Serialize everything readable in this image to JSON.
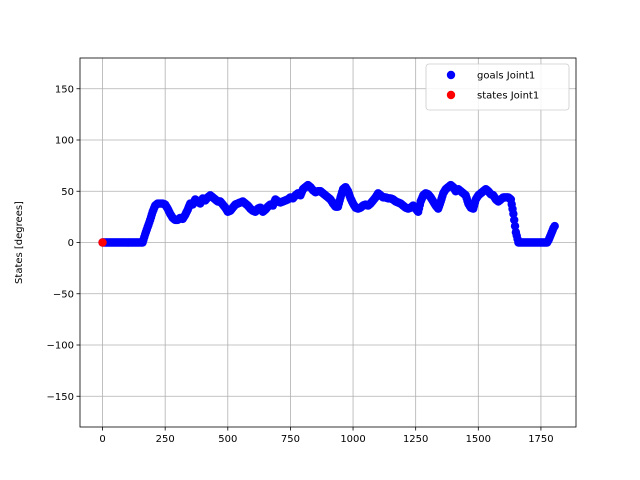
{
  "chart_data": {
    "type": "scatter",
    "title": "",
    "xlabel": "",
    "ylabel": "States [degrees]",
    "xlim": [
      -90,
      1890
    ],
    "ylim": [
      -180,
      180
    ],
    "xticks": [
      0,
      250,
      500,
      750,
      1000,
      1250,
      1500,
      1750
    ],
    "yticks": [
      -150,
      -100,
      -50,
      0,
      50,
      100,
      150
    ],
    "grid": true,
    "legend_position": "top-right",
    "series": [
      {
        "name": "goals Joint1",
        "color": "#0000ff",
        "points": [
          [
            0,
            0
          ],
          [
            20,
            0
          ],
          [
            50,
            0
          ],
          [
            80,
            0
          ],
          [
            110,
            0
          ],
          [
            140,
            0
          ],
          [
            160,
            0
          ],
          [
            170,
            8
          ],
          [
            180,
            15
          ],
          [
            190,
            22
          ],
          [
            200,
            30
          ],
          [
            210,
            36
          ],
          [
            220,
            38
          ],
          [
            240,
            38
          ],
          [
            250,
            37
          ],
          [
            260,
            33
          ],
          [
            270,
            28
          ],
          [
            280,
            24
          ],
          [
            290,
            22
          ],
          [
            300,
            22
          ],
          [
            310,
            24
          ],
          [
            320,
            23
          ],
          [
            330,
            27
          ],
          [
            340,
            32
          ],
          [
            350,
            38
          ],
          [
            360,
            37
          ],
          [
            370,
            42
          ],
          [
            380,
            40
          ],
          [
            390,
            38
          ],
          [
            400,
            43
          ],
          [
            410,
            41
          ],
          [
            420,
            44
          ],
          [
            430,
            46
          ],
          [
            440,
            44
          ],
          [
            450,
            42
          ],
          [
            460,
            40
          ],
          [
            470,
            40
          ],
          [
            480,
            37
          ],
          [
            490,
            34
          ],
          [
            500,
            30
          ],
          [
            510,
            31
          ],
          [
            520,
            34
          ],
          [
            530,
            37
          ],
          [
            540,
            38
          ],
          [
            550,
            39
          ],
          [
            560,
            40
          ],
          [
            570,
            38
          ],
          [
            580,
            36
          ],
          [
            590,
            33
          ],
          [
            600,
            31
          ],
          [
            610,
            30
          ],
          [
            620,
            33
          ],
          [
            630,
            34
          ],
          [
            640,
            30
          ],
          [
            650,
            32
          ],
          [
            660,
            35
          ],
          [
            670,
            37
          ],
          [
            680,
            36
          ],
          [
            690,
            42
          ],
          [
            700,
            40
          ],
          [
            710,
            39
          ],
          [
            720,
            40
          ],
          [
            730,
            41
          ],
          [
            740,
            42
          ],
          [
            750,
            44
          ],
          [
            760,
            43
          ],
          [
            770,
            46
          ],
          [
            780,
            48
          ],
          [
            790,
            46
          ],
          [
            800,
            52
          ],
          [
            810,
            54
          ],
          [
            820,
            56
          ],
          [
            830,
            54
          ],
          [
            840,
            51
          ],
          [
            850,
            49
          ],
          [
            860,
            50
          ],
          [
            870,
            50
          ],
          [
            880,
            48
          ],
          [
            890,
            46
          ],
          [
            900,
            44
          ],
          [
            910,
            42
          ],
          [
            920,
            38
          ],
          [
            930,
            35
          ],
          [
            940,
            35
          ],
          [
            950,
            44
          ],
          [
            960,
            52
          ],
          [
            970,
            54
          ],
          [
            980,
            50
          ],
          [
            990,
            43
          ],
          [
            1000,
            38
          ],
          [
            1010,
            34
          ],
          [
            1020,
            33
          ],
          [
            1030,
            34
          ],
          [
            1040,
            36
          ],
          [
            1050,
            37
          ],
          [
            1060,
            36
          ],
          [
            1070,
            38
          ],
          [
            1080,
            41
          ],
          [
            1090,
            44
          ],
          [
            1100,
            48
          ],
          [
            1110,
            46
          ],
          [
            1120,
            44
          ],
          [
            1130,
            44
          ],
          [
            1140,
            43
          ],
          [
            1150,
            43
          ],
          [
            1160,
            42
          ],
          [
            1170,
            40
          ],
          [
            1180,
            39
          ],
          [
            1190,
            38
          ],
          [
            1200,
            36
          ],
          [
            1210,
            34
          ],
          [
            1220,
            33
          ],
          [
            1230,
            34
          ],
          [
            1240,
            36
          ],
          [
            1250,
            33
          ],
          [
            1260,
            30
          ],
          [
            1270,
            40
          ],
          [
            1280,
            46
          ],
          [
            1290,
            48
          ],
          [
            1300,
            47
          ],
          [
            1310,
            44
          ],
          [
            1320,
            40
          ],
          [
            1330,
            36
          ],
          [
            1340,
            33
          ],
          [
            1350,
            40
          ],
          [
            1360,
            48
          ],
          [
            1370,
            52
          ],
          [
            1380,
            54
          ],
          [
            1390,
            56
          ],
          [
            1400,
            54
          ],
          [
            1410,
            50
          ],
          [
            1420,
            52
          ],
          [
            1430,
            50
          ],
          [
            1440,
            48
          ],
          [
            1450,
            46
          ],
          [
            1460,
            38
          ],
          [
            1470,
            34
          ],
          [
            1480,
            33
          ],
          [
            1490,
            42
          ],
          [
            1500,
            46
          ],
          [
            1510,
            48
          ],
          [
            1520,
            50
          ],
          [
            1530,
            52
          ],
          [
            1540,
            50
          ],
          [
            1550,
            47
          ],
          [
            1560,
            46
          ],
          [
            1570,
            42
          ],
          [
            1580,
            40
          ],
          [
            1590,
            42
          ],
          [
            1600,
            44
          ],
          [
            1610,
            44
          ],
          [
            1620,
            44
          ],
          [
            1630,
            42
          ],
          [
            1640,
            28
          ],
          [
            1650,
            10
          ],
          [
            1660,
            0
          ],
          [
            1680,
            0
          ],
          [
            1700,
            0
          ],
          [
            1720,
            0
          ],
          [
            1740,
            0
          ],
          [
            1760,
            0
          ],
          [
            1775,
            0
          ],
          [
            1780,
            2
          ],
          [
            1790,
            8
          ],
          [
            1800,
            14
          ],
          [
            1805,
            16
          ]
        ]
      },
      {
        "name": "states Joint1",
        "color": "#ff0000",
        "points": [
          [
            0,
            0
          ]
        ]
      }
    ]
  }
}
